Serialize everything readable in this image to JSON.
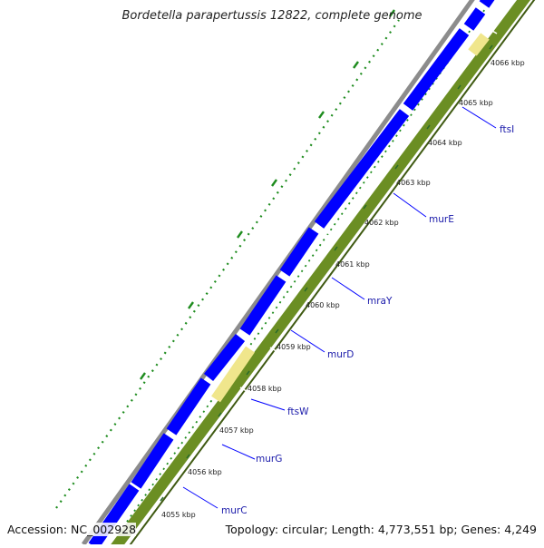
{
  "title": "Bordetella parapertussis 12822, complete genome",
  "accession": "Accession: NC_002928",
  "summary": "Topology: circular; Length: 4,773,551 bp; Genes: 4,249",
  "colors": {
    "background": "#ffffff",
    "backbone": "#8c8c8c",
    "forward_strand": "#0000ff",
    "reverse_strand": "#6b8e23",
    "reverse_strand_dark": "#3f5a12",
    "highlight": "#f0e68c",
    "gc_track": "#1e8c1e",
    "ruler_text": "#222222",
    "gene_label": "#1a1aaa"
  },
  "ruler_labels": [
    "4055 kbp",
    "4056 kbp",
    "4057 kbp",
    "4058 kbp",
    "4059 kbp",
    "4060 kbp",
    "4061 kbp",
    "4062 kbp",
    "4063 kbp",
    "4064 kbp",
    "4065 kbp",
    "4066 kbp"
  ],
  "gene_labels": [
    "murC",
    "murG",
    "ftsW",
    "murD",
    "mraY",
    "murE",
    "ftsI"
  ]
}
